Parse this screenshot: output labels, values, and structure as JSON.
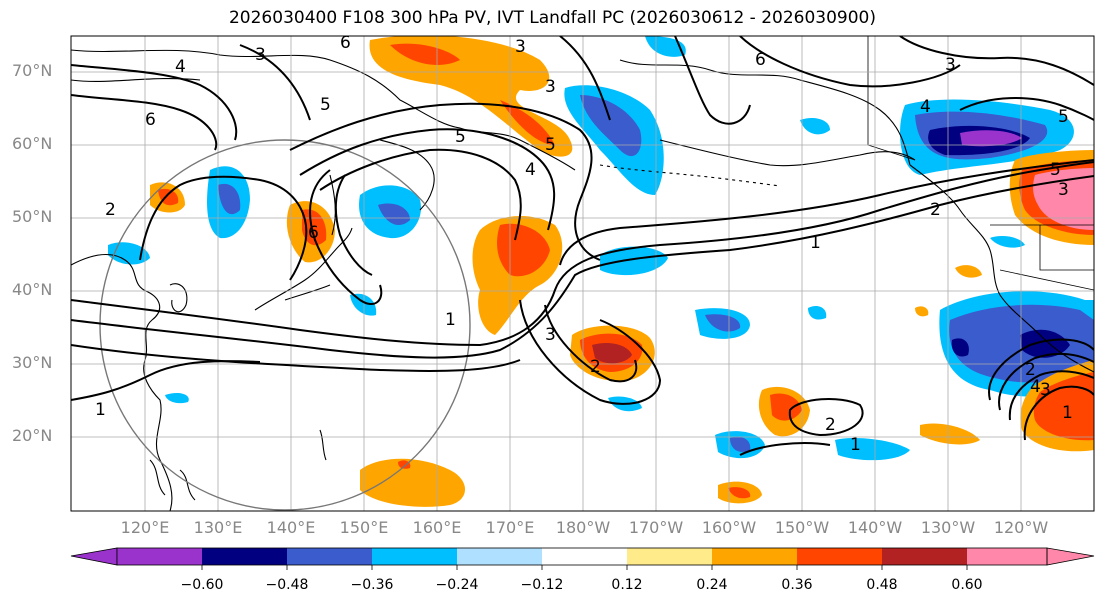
{
  "title": "2026030400 F108 300 hPa PV, IVT Landfall PC (2026030612 - 2026030900)",
  "lat_labels": [
    "70°N",
    "60°N",
    "50°N",
    "40°N",
    "30°N",
    "20°N"
  ],
  "lon_labels": [
    "120°E",
    "130°E",
    "140°E",
    "150°E",
    "160°E",
    "170°E",
    "180°W",
    "170°W",
    "160°W",
    "150°W",
    "140°W",
    "130°W",
    "120°W"
  ],
  "colorbar": {
    "ticks": [
      "−0.60",
      "−0.48",
      "−0.36",
      "−0.24",
      "−0.12",
      "0.12",
      "0.24",
      "0.36",
      "0.48",
      "0.60"
    ],
    "colors": [
      "#9933cc",
      "#000080",
      "#3a5ccc",
      "#00bfff",
      "#b0e0ff",
      "#ffffff",
      "#ffeb8a",
      "#ffa500",
      "#ff4500",
      "#b22222",
      "#ff88aa"
    ]
  },
  "pv_contour_labels": [
    "1",
    "2",
    "3",
    "4",
    "5",
    "6"
  ],
  "colors": {
    "ocean": "#ffffff",
    "grid": "#aaaaaa",
    "contour": "#000000"
  }
}
